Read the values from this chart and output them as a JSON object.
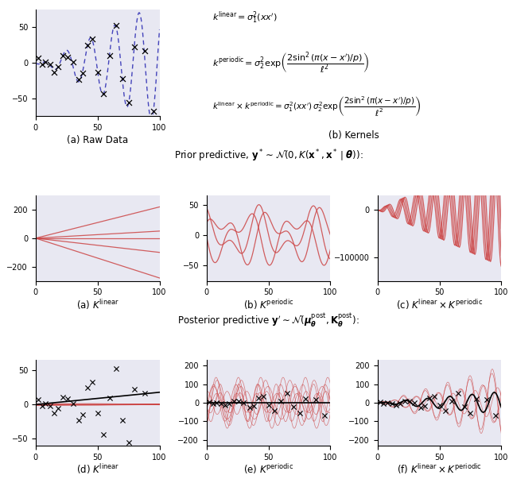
{
  "fig_width": 6.4,
  "fig_height": 6.03,
  "dpi": 100,
  "bg_color": "#e8e8f2",
  "line_color_blue": "#4444bb",
  "line_color_red": "#cc4444",
  "scatter_color": "black",
  "title_prior": "Prior predictive, $\\mathbf{y}^* \\sim \\mathcal{N}(0, K(\\mathbf{x}^*, \\mathbf{x}^* \\mid \\boldsymbol{\\theta}))$:",
  "title_posterior": "Posterior predictive $\\mathbf{y}' \\sim \\mathcal{N}(\\boldsymbol{\\mu}^{\\mathrm{post}}_{\\boldsymbol{\\theta}}, \\mathbf{K}^{\\mathrm{post}}_{\\boldsymbol{\\theta}})$:",
  "caption_a_top": "(a) Raw Data",
  "caption_b_top": "(b) Kernels",
  "caption_a_prior": "(a) $K^{\\mathrm{linear}}$",
  "caption_b_prior": "(b) $K^{\\mathrm{periodic}}$",
  "caption_c_prior": "(c) $K^{\\mathrm{linear}} \\times K^{\\mathrm{periodic}}$",
  "caption_a_post": "(d) $K^{\\mathrm{linear}}$",
  "caption_b_post": "(e) $K^{\\mathrm{periodic}}$",
  "caption_c_post": "(f) $K^{\\mathrm{linear}} \\times K^{\\mathrm{periodic}}$"
}
